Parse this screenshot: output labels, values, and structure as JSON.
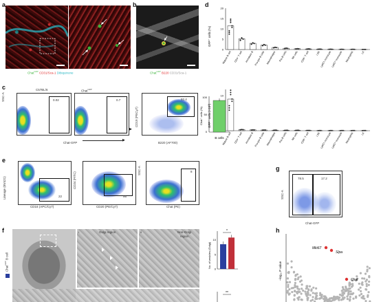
{
  "panels": {
    "a": {
      "label": "a",
      "legend": [
        {
          "text": "Chat",
          "sup": "GFP",
          "color": "#3cb43c"
        },
        {
          "text": " CD31",
          "sup": "",
          "color": "#e03030"
        },
        {
          "text": "/Sca-1",
          "sup": "",
          "color": "#e03030"
        },
        {
          "text": " Dibiquinone",
          "sup": "",
          "color": "#29b7c4"
        }
      ]
    },
    "b": {
      "label": "b",
      "legend": [
        {
          "text": "Chat",
          "sup": "GFP",
          "color": "#3cb43c"
        },
        {
          "text": " B220",
          "sup": "",
          "color": "#e03030"
        },
        {
          "text": " CD31/Sca-1",
          "sup": "",
          "color": "#bbbbbb"
        }
      ]
    },
    "c": {
      "label": "c",
      "plot1_title": "C57BL/6",
      "plot1_gate": "0.02",
      "plot2_title": "Chat",
      "plot2_title_sup": "GFP",
      "plot2_gate": "0.7",
      "plot3_gate": "92.4",
      "ylabel": "SSC-A",
      "xlabel": "Chat-GFP",
      "plot3_ylabel": "CD19 (PECy7)",
      "plot3_xlabel": "B220 (AF700)",
      "ticks_y": [
        "10⁵",
        "10⁴",
        "10³",
        "0",
        "-10³"
      ],
      "ticks_x": [
        "0",
        "10³",
        "10⁴",
        "10⁵"
      ],
      "ticks_x3": [
        "-10³",
        "10³",
        "10⁴",
        "10⁵"
      ]
    },
    "c_bar": {
      "ylabel": "Chat⁺ cells (%)",
      "yticks": [
        "100",
        "50",
        "0"
      ],
      "category": "B cells",
      "value": 90
    },
    "d": {
      "label": "d"
    },
    "e": {
      "label": "e",
      "plot1_gate": "22",
      "plot2_gate": "95",
      "plot3_gate": "8",
      "plot1_ylabel": "Lineage (BV421)",
      "plot1_xlabel": "CD16 (APC/Cy7)",
      "plot2_ylabel": "CD24 (FITC)",
      "plot2_xlabel": "CD20 (PE/Cy7)",
      "plot3_ylabel": "SSC-A",
      "plot3_xlabel": "Chat (PE)"
    },
    "f": {
      "label": "f",
      "side_label": "Chat",
      "side_label_sup": "GFP",
      "side_label_tail": " B cell",
      "golgi": "Golgi region",
      "nongolgi1": "Non-Golgi",
      "nongolgi2": "region",
      "sub_i": "i",
      "sub_ii": "ii",
      "bar_ylabel": "No. of vesicles (Golgi)",
      "bar_sig": "*",
      "bar_sig2": "**",
      "bar_yticks": [
        "10",
        "5",
        "0"
      ]
    },
    "g": {
      "label": "g",
      "gate_left": "78.5",
      "gate_right": "17.2",
      "ylabel": "SSC-A",
      "xlabel": "Chat-GFP",
      "ticks_x": [
        "-10³",
        "0",
        "10³",
        "10⁴"
      ]
    },
    "h": {
      "label": "h",
      "ylabel": "–log₁₀ P value",
      "genes": [
        "Mki67",
        "Slpa",
        "Chat"
      ]
    }
  },
  "chart_data": [
    {
      "type": "bar",
      "title": "",
      "ylabel": "GFP⁺ cells (%)",
      "categories": [
        "Mature B cell",
        "CD4⁺ T cell",
        "Immature B",
        "Pro-pre-B cells",
        "Macrophages",
        "Pre-B cells",
        "NK cells",
        "CD8⁺ T cell",
        "LSK",
        "Ly6Cʰᵢ monocyte",
        "Ly6Cˡᵒ monocyte",
        "Neutrophils",
        "LK"
      ],
      "yticks": [
        "20",
        "15",
        "10",
        "5",
        "0"
      ],
      "ylim": [
        0,
        20
      ],
      "values": [
        11.5,
        5.2,
        3.0,
        2.2,
        1.0,
        0.6,
        0.4,
        0.3,
        0.2,
        0.15,
        0.1,
        0.1,
        0.05
      ]
    },
    {
      "type": "bar",
      "title": "",
      "ylabel": "GFP⁺ cells (×10³)",
      "categories": [
        "Mature B cell",
        "CD4⁺ T cell",
        "Immature B",
        "Pro-pre-B cells",
        "Macrophages",
        "Pre-B cells",
        "NK cells",
        "CD8⁺ T cell",
        "LSK",
        "Ly6Cʰᵢ monocyte",
        "Ly6Cˡᵒ monocyte",
        "Neutrophils",
        "LK"
      ],
      "yticks": [
        "10",
        "5",
        "0"
      ],
      "ylim": [
        0,
        15
      ],
      "values": [
        11.5,
        0.4,
        0.3,
        0.25,
        0.2,
        0.15,
        0.15,
        0.1,
        0.05,
        0.05,
        0.05,
        0.05,
        0.05
      ]
    },
    {
      "type": "bar",
      "title": "",
      "ylabel": "No. of vesicles (Golgi)",
      "categories": [
        "Golgi",
        "Non-Golgi"
      ],
      "values": [
        8.5,
        10.8
      ],
      "colors": [
        "#2b3f9e",
        "#c0303a"
      ],
      "ylim": [
        0,
        13
      ]
    }
  ]
}
